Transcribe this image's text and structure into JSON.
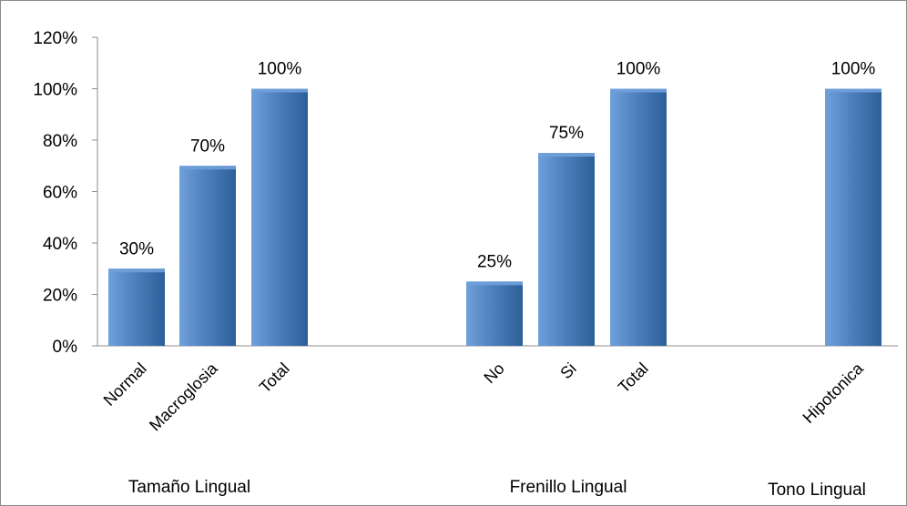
{
  "chart_data": {
    "type": "bar",
    "title": "",
    "xlabel": "",
    "ylabel": "",
    "ylim": [
      0,
      1.2
    ],
    "y_ticks": [
      {
        "value": 0,
        "label": "0%"
      },
      {
        "value": 0.2,
        "label": "20%"
      },
      {
        "value": 0.4,
        "label": "40%"
      },
      {
        "value": 0.6,
        "label": "60%"
      },
      {
        "value": 0.8,
        "label": "80%"
      },
      {
        "value": 1.0,
        "label": "100%"
      },
      {
        "value": 1.2,
        "label": "120%"
      }
    ],
    "grid": false,
    "legend": "none",
    "colors": {
      "bar": "#4f81bd",
      "bar_dark": "#2c5f98",
      "bar_light": "#6fa0dc",
      "axis": "#8c8c8c"
    },
    "groups": [
      {
        "name": "Tamaño Lingual",
        "bars": [
          {
            "category": "Normal",
            "value": 0.3,
            "label": "30%"
          },
          {
            "category": "Macroglosia",
            "value": 0.7,
            "label": "70%"
          },
          {
            "category": "Total",
            "value": 1.0,
            "label": "100%"
          }
        ]
      },
      {
        "name": "Frenillo Lingual",
        "bars": [
          {
            "category": "No",
            "value": 0.25,
            "label": "25%"
          },
          {
            "category": "Si",
            "value": 0.75,
            "label": "75%"
          },
          {
            "category": "Total",
            "value": 1.0,
            "label": "100%"
          }
        ]
      },
      {
        "name": "Tono Lingual",
        "bars": [
          {
            "category": "Hipotonica",
            "value": 1.0,
            "label": "100%"
          }
        ]
      }
    ]
  }
}
